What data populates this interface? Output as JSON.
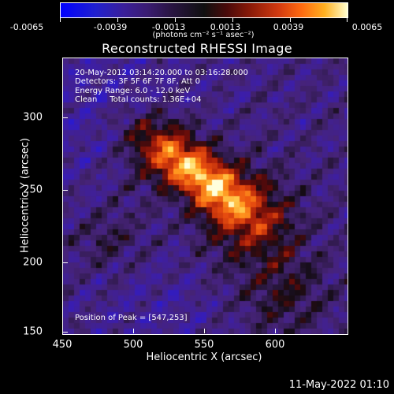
{
  "colorbar": {
    "labels": [
      "-0.0065",
      "-0.0039",
      "-0.0013",
      "0.0013",
      "0.0039",
      "0.0065"
    ],
    "units": "(photons cm⁻² s⁻¹ asec⁻²)",
    "colors": [
      "#0000ff",
      "#3a1f9a",
      "#101010",
      "#8a1a08",
      "#ff6a10",
      "#ffffd0"
    ]
  },
  "title": "Reconstructed RHESSI Image",
  "info": {
    "time_range": "20-May-2012 03:14:20.000 to 03:16:28.000",
    "detectors": "Detectors: 3F 5F 6F 7F 8F, Att 0",
    "energy": "Energy Range: 6.0 - 12.0 keV",
    "clean": "Clean     Total counts: 1.36E+04"
  },
  "peak": "Position of Peak = [547,253]",
  "x_axis": {
    "title": "Heliocentric X (arcsec)",
    "ticks": [
      "450",
      "500",
      "550",
      "600"
    ]
  },
  "y_axis": {
    "title": "Heliocentric Y (arcsec)",
    "ticks": [
      "300",
      "250",
      "200",
      "150"
    ]
  },
  "timestamp": "11-May-2022 01:10"
}
